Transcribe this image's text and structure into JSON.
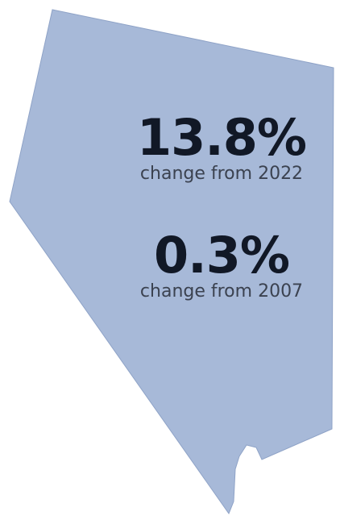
{
  "map": {
    "fill_color": "#a7b9d8",
    "stroke_color": "#8fa3c7"
  },
  "stats": [
    {
      "value": "13.8%",
      "caption": "change from 2022"
    },
    {
      "value": "0.3%",
      "caption": "change from 2007"
    }
  ]
}
